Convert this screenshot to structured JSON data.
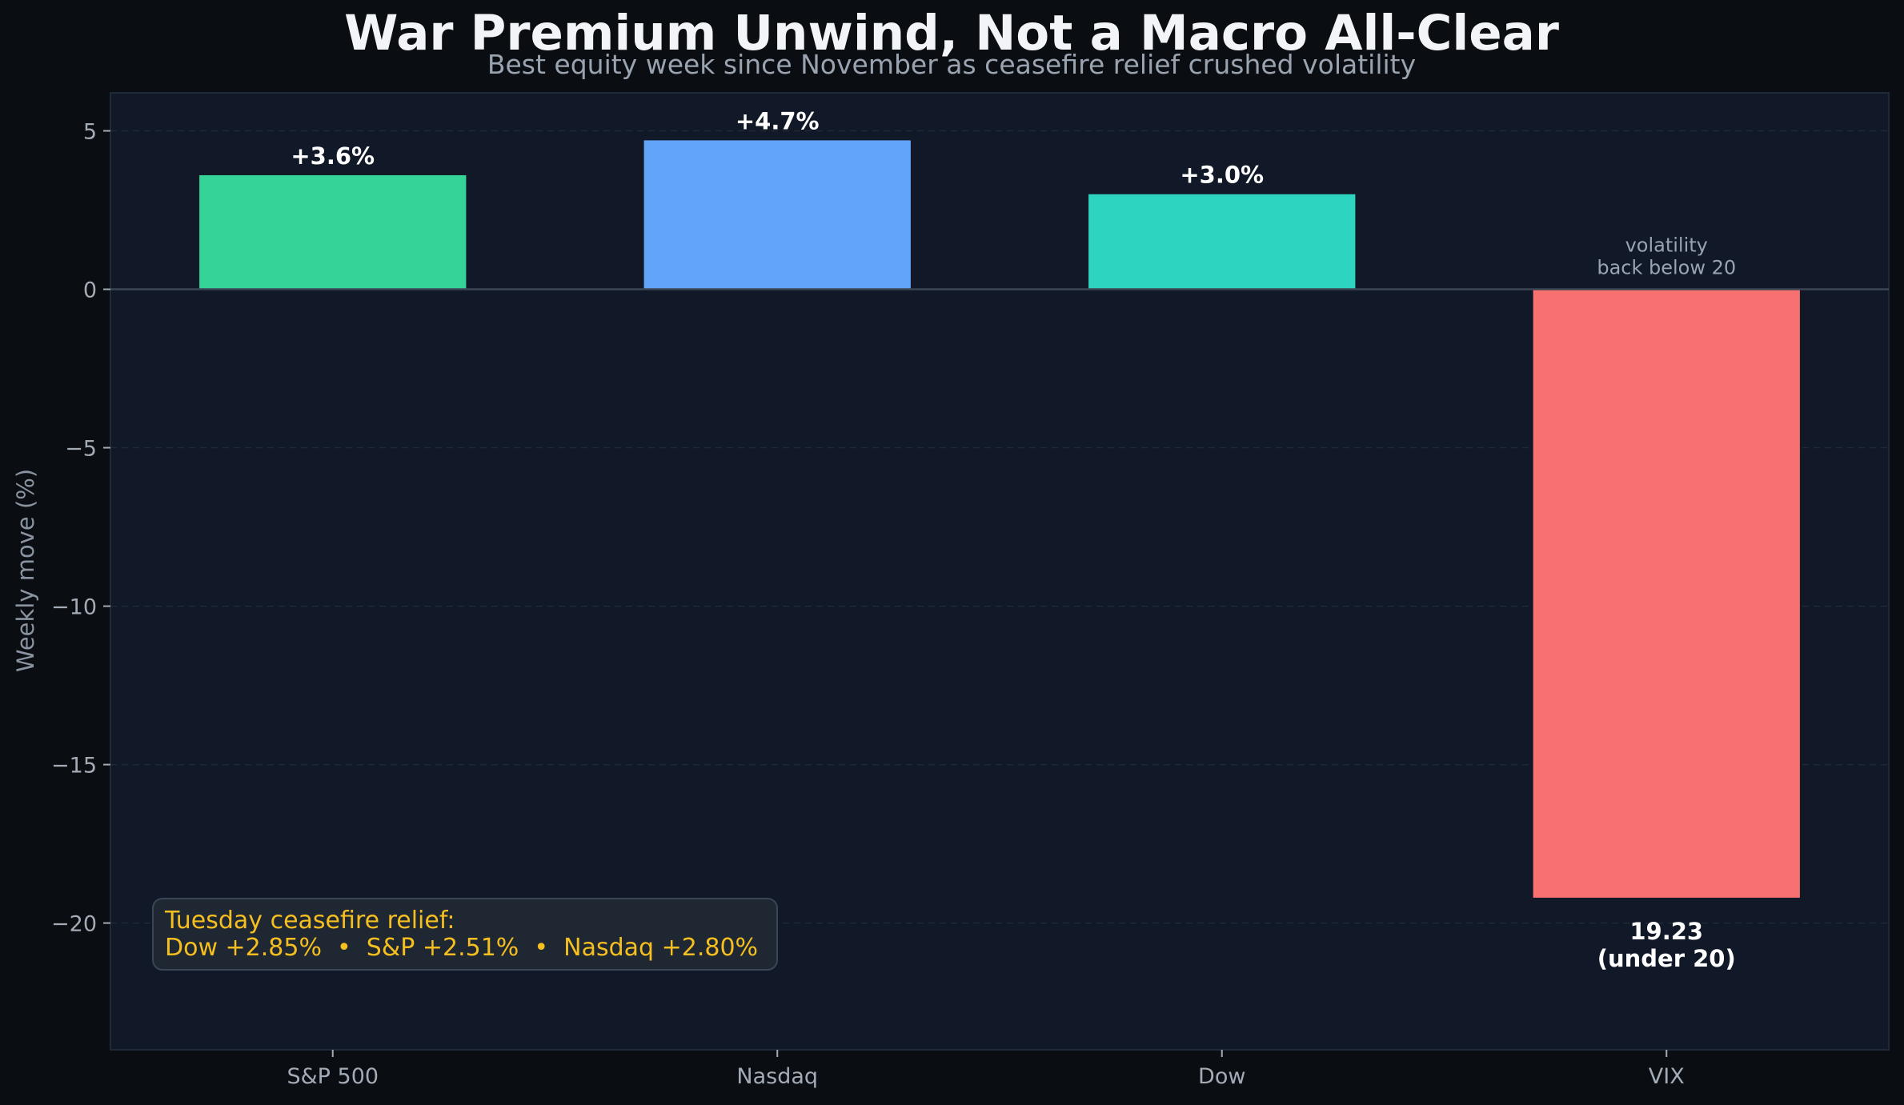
{
  "chart_data": {
    "type": "bar",
    "title": "War Premium Unwind, Not a Macro All-Clear",
    "subtitle": "Best equity week since November as ceasefire relief crushed volatility",
    "xlabel": "",
    "ylabel": "Weekly move (%)",
    "categories": [
      "S&P 500",
      "Nasdaq",
      "Dow",
      "VIX"
    ],
    "values": [
      3.6,
      4.7,
      3.0,
      -19.2
    ],
    "bar_colors": [
      "#36d399",
      "#60a5fa",
      "#2dd4bf",
      "#f87171"
    ],
    "bar_labels": [
      "+3.6%",
      "+4.7%",
      "+3.0%",
      "19.23\n(under 20)"
    ],
    "ylim": [
      -24,
      6.2
    ],
    "yticks": [
      5,
      0,
      -5,
      -10,
      -15,
      -20
    ],
    "ytick_labels": [
      "5",
      "0",
      "−5",
      "−10",
      "−15",
      "−20"
    ],
    "grid": "horizontal dashed",
    "annotations": [
      {
        "category": "VIX",
        "text": "volatility\nback below 20"
      }
    ],
    "callout": {
      "lines": [
        "Tuesday ceasefire relief:",
        "Dow +2.85%  •  S&P +2.51%  •  Nasdaq +2.80%"
      ],
      "placement": "bottom-left"
    },
    "colors": {
      "figure_background": "#0a0d11",
      "axes_background": "#111827",
      "callout_text": "#f5bf1f"
    }
  }
}
